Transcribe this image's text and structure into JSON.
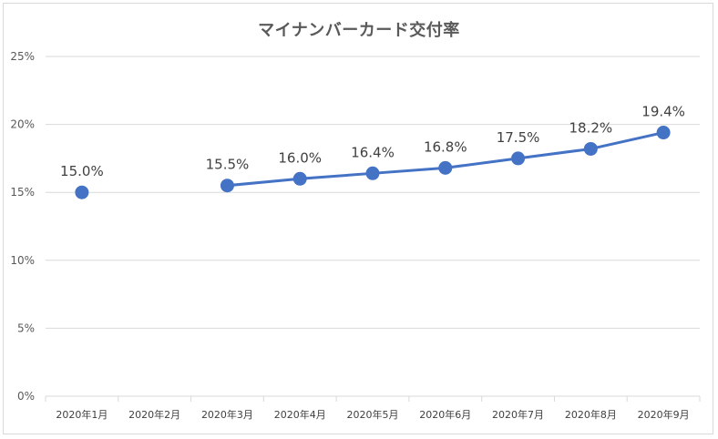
{
  "chart_data": {
    "type": "line",
    "title": "マイナンバーカード交付率",
    "categories": [
      "2020年1月",
      "2020年2月",
      "2020年3月",
      "2020年4月",
      "2020年5月",
      "2020年6月",
      "2020年7月",
      "2020年8月",
      "2020年9月"
    ],
    "series": [
      {
        "values": [
          15.0,
          null,
          15.5,
          16.0,
          16.4,
          16.8,
          17.5,
          18.2,
          19.4
        ],
        "data_labels": [
          "15.0%",
          "",
          "15.5%",
          "16.0%",
          "16.4%",
          "16.8%",
          "17.5%",
          "18.2%",
          "19.4%"
        ],
        "color": "#4472c4"
      }
    ],
    "ylim": [
      0,
      25
    ],
    "yticks": [
      0,
      5,
      10,
      15,
      20,
      25
    ],
    "ytick_labels": [
      "0%",
      "5%",
      "10%",
      "15%",
      "20%",
      "25%"
    ],
    "grid": true,
    "legend": "none"
  },
  "colors": {
    "series": "#4472c4",
    "grid": "#d9d9d9",
    "text": "#595959"
  }
}
